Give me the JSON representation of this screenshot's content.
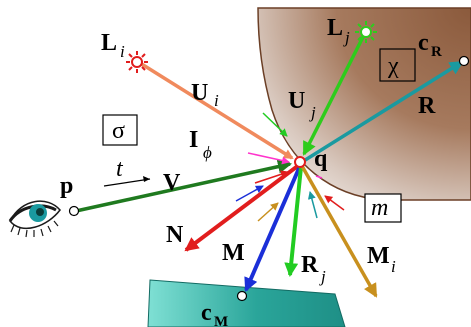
{
  "labels": {
    "light_i": "L",
    "light_i_sub": "i",
    "light_j": "L",
    "light_j_sub": "j",
    "u_i": "U",
    "u_i_sub": "i",
    "u_j": "U",
    "u_j_sub": "j",
    "sigma": "σ",
    "chi": "χ",
    "m": "m",
    "i_phi": "I",
    "i_phi_sub": "ϕ",
    "q": "q",
    "p": "p",
    "t": "t",
    "v": "V",
    "c_r": "c",
    "c_r_sub": "R",
    "r": "R",
    "n": "N",
    "m_vec": "M",
    "r_j": "R",
    "r_j_sub": "j",
    "m_i": "M",
    "m_i_sub": "i",
    "c_m": "c",
    "c_m_sub": "M"
  },
  "colors": {
    "brown_surface": "#8b5a3c",
    "teal_surface": "#2aa59a",
    "orange_ray": "#f08a5d",
    "green_ray": "#2ecc1c",
    "teal_ray": "#1a9aa0",
    "dark_green_ray": "#1f7a1f",
    "red_ray": "#e11d1d",
    "blue_ray": "#1b2fd8",
    "bright_green_ray": "#22cc22",
    "gold_ray": "#c8901e",
    "magenta_ray": "#ff33cc"
  },
  "icons": [
    "light-source-icon",
    "light-source-icon",
    "eye-icon"
  ]
}
